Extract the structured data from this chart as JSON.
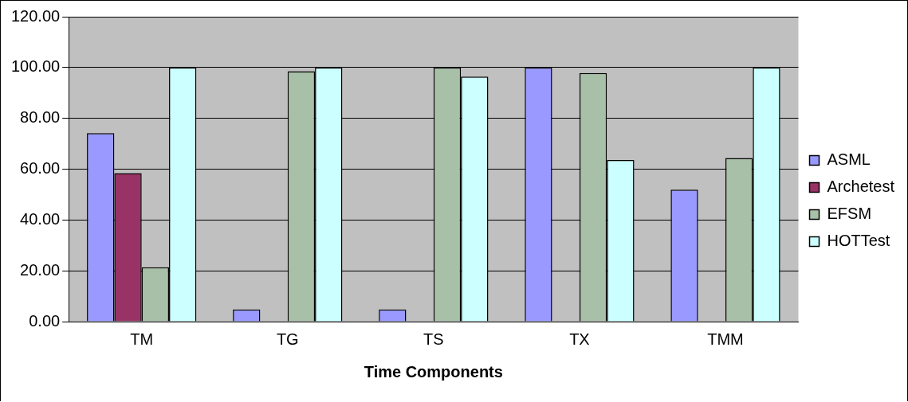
{
  "chart_data": {
    "type": "bar",
    "xlabel": "Time Components",
    "categories": [
      "TM",
      "TG",
      "TS",
      "TX",
      "TMM"
    ],
    "series": [
      {
        "name": "ASML",
        "color": "#9999ff",
        "values": [
          74.2,
          4.8,
          4.8,
          100,
          51.9
        ]
      },
      {
        "name": "Archetest",
        "color": "#993366",
        "values": [
          58.4,
          null,
          null,
          null,
          null
        ]
      },
      {
        "name": "EFSM",
        "color": "#a8c0a8",
        "values": [
          21.4,
          98.5,
          100,
          97.8,
          64.4
        ]
      },
      {
        "name": "HOTTest",
        "color": "#ccffff",
        "values": [
          100,
          100,
          96.4,
          63.6,
          100
        ]
      }
    ],
    "ylim": [
      0,
      120
    ],
    "yticks": [
      {
        "value": 0,
        "label": "0.00"
      },
      {
        "value": 20,
        "label": "20.00"
      },
      {
        "value": 40,
        "label": "40.00"
      },
      {
        "value": 60,
        "label": "60.00"
      },
      {
        "value": 80,
        "label": "80.00"
      },
      {
        "value": 100,
        "label": "100.00"
      },
      {
        "value": 120,
        "label": "120.00"
      }
    ],
    "grid": "y",
    "legend": "right"
  }
}
